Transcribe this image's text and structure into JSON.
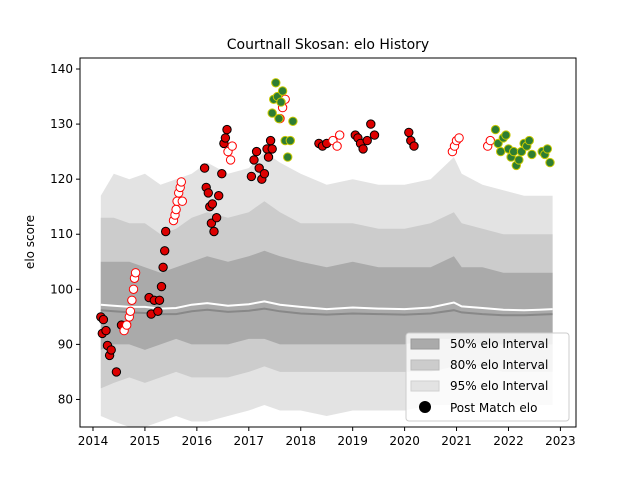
{
  "chart_data": {
    "type": "scatter",
    "title": "Courtnall Skosan: elo History",
    "xlabel": "",
    "ylabel": "elo score",
    "xlim": [
      2013.75,
      2023.3
    ],
    "ylim": [
      75,
      142
    ],
    "xticks": [
      2014,
      2015,
      2016,
      2017,
      2018,
      2019,
      2020,
      2021,
      2022,
      2023
    ],
    "yticks": [
      80,
      90,
      100,
      110,
      120,
      130,
      140
    ],
    "grid": false,
    "legend_position": "lower-right",
    "legend": [
      {
        "label": "50% elo Interval",
        "color": "#aaaaaa"
      },
      {
        "label": "80% elo Interval",
        "color": "#cccccc"
      },
      {
        "label": "95% elo Interval",
        "color": "#e3e3e3"
      },
      {
        "label": "Post Match elo",
        "color": "#000000"
      }
    ],
    "bands": {
      "x": [
        2014.15,
        2014.4,
        2014.7,
        2015.0,
        2015.3,
        2015.6,
        2015.9,
        2016.2,
        2016.6,
        2017.0,
        2017.3,
        2017.6,
        2018.0,
        2018.5,
        2019.0,
        2019.5,
        2020.0,
        2020.5,
        2020.95,
        2021.1,
        2021.5,
        2021.9,
        2022.3,
        2022.6,
        2022.85
      ],
      "p95_hi": [
        117,
        121,
        120,
        121,
        119,
        120,
        121,
        123,
        121,
        122,
        125,
        123,
        121,
        119,
        120,
        119,
        119,
        120,
        124,
        121,
        119,
        118,
        117,
        117,
        117
      ],
      "p95_lo": [
        77,
        76,
        75,
        75,
        76,
        77,
        76,
        76,
        77,
        78,
        79,
        78,
        78,
        77,
        78,
        78,
        78,
        79,
        79,
        79,
        79,
        79,
        79,
        79,
        79
      ],
      "p80_hi": [
        113,
        113,
        112,
        112,
        110,
        111,
        113,
        114,
        113,
        114,
        116,
        114,
        112,
        112,
        112,
        111,
        111,
        112,
        114,
        112,
        111,
        110,
        110,
        110,
        110
      ],
      "p80_lo": [
        82,
        83,
        84,
        83,
        84,
        85,
        84,
        84,
        84,
        85,
        86,
        85,
        85,
        85,
        85,
        85,
        85,
        85,
        86,
        86,
        86,
        85,
        85,
        85,
        85
      ],
      "p50_hi": [
        105,
        105,
        105,
        104,
        103,
        104,
        105,
        106,
        105,
        106,
        107,
        106,
        105,
        104,
        105,
        104,
        104,
        104,
        106,
        104,
        104,
        103,
        103,
        103,
        103
      ],
      "p50_lo": [
        89,
        90,
        90,
        89,
        90,
        91,
        90,
        90,
        90,
        91,
        91,
        90,
        90,
        90,
        90,
        90,
        90,
        91,
        91,
        91,
        90,
        90,
        90,
        90,
        90
      ],
      "mean": [
        97.2,
        97.0,
        96.8,
        96.8,
        96.5,
        96.6,
        97.2,
        97.5,
        97.0,
        97.3,
        97.8,
        97.2,
        96.8,
        96.4,
        96.7,
        96.5,
        96.4,
        96.7,
        97.6,
        96.9,
        96.6,
        96.3,
        96.2,
        96.3,
        96.4
      ],
      "median": [
        96.2,
        96.0,
        95.8,
        95.7,
        95.5,
        95.5,
        96.0,
        96.3,
        95.9,
        96.1,
        96.5,
        96.0,
        95.6,
        95.4,
        95.6,
        95.5,
        95.4,
        95.6,
        96.2,
        95.8,
        95.5,
        95.3,
        95.3,
        95.4,
        95.5
      ]
    },
    "series": [
      {
        "color": "#dd0000",
        "edge": "#000000",
        "filled": true,
        "x": [
          2014.15,
          2014.18,
          2014.2,
          2014.25,
          2014.28,
          2014.32,
          2014.35,
          2014.45,
          2014.55,
          2015.08,
          2015.12,
          2015.18,
          2015.25,
          2015.28,
          2015.32,
          2015.35,
          2015.38,
          2015.4,
          2016.15,
          2016.18,
          2016.22,
          2016.25,
          2016.28,
          2016.3,
          2016.33,
          2016.38,
          2016.42,
          2016.48,
          2016.52,
          2016.55,
          2016.58,
          2017.05,
          2017.1,
          2017.15,
          2017.2,
          2017.25,
          2017.3,
          2017.35,
          2017.38,
          2017.42,
          2017.45,
          2018.35,
          2018.42,
          2018.5,
          2019.05,
          2019.1,
          2019.15,
          2019.2,
          2019.28,
          2019.35,
          2019.42,
          2020.08,
          2020.12,
          2020.18
        ],
        "y": [
          95.0,
          92.0,
          94.5,
          92.5,
          89.8,
          88.0,
          89.0,
          85.0,
          93.5,
          98.5,
          95.5,
          98.0,
          96.0,
          98.0,
          100.5,
          104.0,
          107.0,
          110.5,
          122.0,
          118.5,
          117.5,
          115.0,
          112.0,
          115.5,
          110.5,
          113.0,
          117.0,
          121.0,
          126.5,
          127.5,
          129.0,
          120.5,
          123.5,
          125.0,
          122.0,
          120.0,
          121.0,
          125.5,
          124.0,
          127.0,
          125.5,
          126.5,
          126.0,
          126.5,
          128.0,
          127.5,
          126.5,
          125.5,
          127.0,
          130.0,
          128.0,
          128.5,
          127.0,
          126.0
        ]
      },
      {
        "color": "#ffffff",
        "edge": "#ff0000",
        "filled": false,
        "x": [
          2014.6,
          2014.65,
          2014.7,
          2014.72,
          2014.75,
          2014.78,
          2014.8,
          2014.82,
          2015.55,
          2015.58,
          2015.6,
          2015.62,
          2015.65,
          2015.68,
          2015.7,
          2015.72,
          2016.6,
          2016.65,
          2016.68,
          2017.6,
          2017.65,
          2017.7,
          2018.62,
          2018.7,
          2018.75,
          2020.92,
          2020.96,
          2021.0,
          2021.05,
          2021.6,
          2021.65
        ],
        "y": [
          92.5,
          93.5,
          95.0,
          96.0,
          98.0,
          100.0,
          102.0,
          103.0,
          112.5,
          113.5,
          114.5,
          116.0,
          117.5,
          118.5,
          119.5,
          116.0,
          125.0,
          123.5,
          126.0,
          131.0,
          133.0,
          134.5,
          127.0,
          126.0,
          128.0,
          125.0,
          126.0,
          127.0,
          127.5,
          126.0,
          127.0
        ]
      },
      {
        "color": "#2e7d32",
        "edge": "#c8c800",
        "filled": true,
        "x": [
          2017.45,
          2017.48,
          2017.52,
          2017.55,
          2017.58,
          2017.62,
          2017.65,
          2017.7,
          2017.75,
          2017.8,
          2017.85,
          2021.75,
          2021.8,
          2021.85,
          2021.9,
          2021.95,
          2022.0,
          2022.05,
          2022.1,
          2022.15,
          2022.2,
          2022.25,
          2022.3,
          2022.35,
          2022.4,
          2022.45,
          2022.65,
          2022.7,
          2022.75,
          2022.8
        ],
        "y": [
          132.0,
          134.5,
          137.5,
          135.0,
          131.0,
          134.0,
          136.0,
          127.0,
          124.0,
          127.0,
          130.5,
          129.0,
          126.5,
          125.0,
          127.5,
          128.0,
          125.5,
          124.0,
          125.0,
          122.5,
          123.5,
          125.0,
          126.5,
          126.0,
          127.0,
          124.5,
          125.0,
          124.5,
          125.5,
          123.0
        ]
      }
    ]
  }
}
